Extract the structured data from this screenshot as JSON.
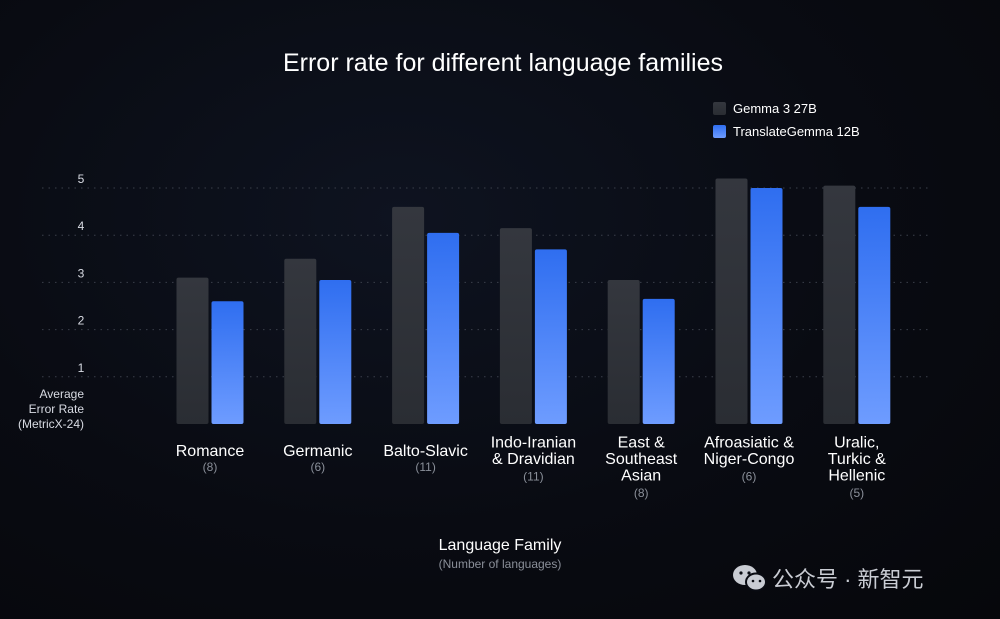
{
  "chart_data": {
    "type": "bar",
    "title": "Error rate for different language families",
    "ylabel_lines": [
      "Average",
      "Error Rate",
      "(MetricX-24)"
    ],
    "xlabel": "Language Family",
    "xlabel_sub": "(Number of languages)",
    "yticks": [
      1,
      2,
      3,
      4,
      5
    ],
    "ylim": [
      0,
      5.2
    ],
    "grid": "dotted horizontal",
    "legend_position": "top-right",
    "categories": [
      {
        "name_lines": [
          "Romance"
        ],
        "count": "(8)"
      },
      {
        "name_lines": [
          "Germanic"
        ],
        "count": "(6)"
      },
      {
        "name_lines": [
          "Balto-Slavic"
        ],
        "count": "(11)"
      },
      {
        "name_lines": [
          "Indo-Iranian",
          "& Dravidian"
        ],
        "count": "(11)"
      },
      {
        "name_lines": [
          "East &",
          "Southeast",
          "Asian"
        ],
        "count": "(8)"
      },
      {
        "name_lines": [
          "Afroasiatic &",
          "Niger-Congo"
        ],
        "count": "(6)"
      },
      {
        "name_lines": [
          "Uralic,",
          "Turkic &",
          "Hellenic"
        ],
        "count": "(5)"
      }
    ],
    "series": [
      {
        "name": "Gemma 3 27B",
        "color": "#34373e",
        "values": [
          3.1,
          3.5,
          4.6,
          4.15,
          3.05,
          5.2,
          5.05
        ]
      },
      {
        "name": "TranslateGemma 12B",
        "color": "#3b7cf6",
        "values": [
          2.6,
          3.05,
          4.05,
          3.7,
          2.65,
          5.0,
          4.6
        ]
      }
    ]
  },
  "watermark": {
    "text": "公众号 · 新智元",
    "icon": "wechat-icon"
  }
}
